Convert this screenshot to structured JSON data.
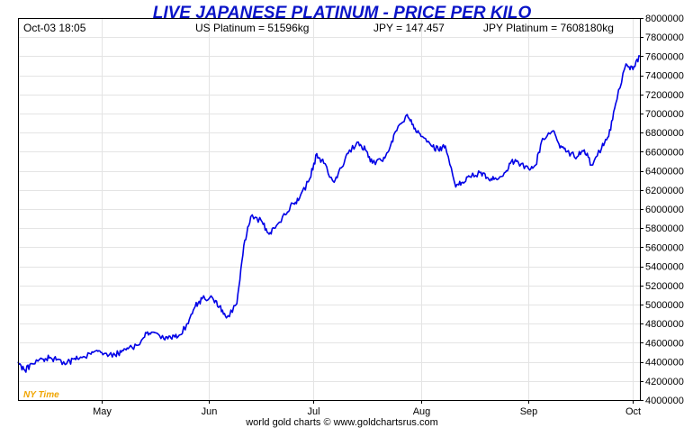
{
  "chart_data": {
    "type": "line",
    "title": "LIVE JAPANESE PLATINUM - PRICE PER KILO",
    "header": {
      "datetime": "Oct-03  18:05",
      "us_platinum": "US Platinum = 51596kg",
      "jpy": "JPY = 147.457",
      "jpy_platinum": "JPY Platinum = 7608180kg"
    },
    "timezone_label": "NY Time",
    "footer": "world gold charts © www.goldchartsrus.com",
    "ylim": [
      4000000,
      8000000
    ],
    "yticks": [
      4000000,
      4200000,
      4400000,
      4600000,
      4800000,
      5000000,
      5200000,
      5400000,
      5600000,
      5800000,
      6000000,
      6200000,
      6400000,
      6600000,
      6800000,
      7000000,
      7200000,
      7400000,
      7600000,
      7800000,
      8000000
    ],
    "ytick_labels": [
      "4000000",
      "4200000",
      "4400000",
      "4600000",
      "4800000",
      "5000000",
      "5200000",
      "5400000",
      "5600000",
      "5800000",
      "6000000",
      "6200000",
      "6400000",
      "6600000",
      "6800000",
      "7000000",
      "7200000",
      "7400000",
      "7600000",
      "7800000",
      "8000000"
    ],
    "x_domain": [
      "2025-04-07",
      "2025-10-03"
    ],
    "xticks": [
      {
        "date": "2025-05-01",
        "label": "May"
      },
      {
        "date": "2025-06-01",
        "label": "Jun"
      },
      {
        "date": "2025-07-01",
        "label": "Jul"
      },
      {
        "date": "2025-08-01",
        "label": "Aug"
      },
      {
        "date": "2025-09-01",
        "label": "Sep"
      },
      {
        "date": "2025-10-01",
        "label": "Oct"
      }
    ],
    "grid": true,
    "line_color": "#0000e6",
    "series": [
      {
        "x": [
          "2025-04-07",
          "2025-04-09",
          "2025-04-11",
          "2025-04-14",
          "2025-04-16",
          "2025-04-18",
          "2025-04-21",
          "2025-04-23",
          "2025-04-25",
          "2025-04-28",
          "2025-04-30",
          "2025-05-02",
          "2025-05-05",
          "2025-05-07",
          "2025-05-09",
          "2025-05-12",
          "2025-05-14",
          "2025-05-16",
          "2025-05-19",
          "2025-05-21",
          "2025-05-23",
          "2025-05-26",
          "2025-05-28",
          "2025-05-30",
          "2025-06-02",
          "2025-06-04",
          "2025-06-06",
          "2025-06-09",
          "2025-06-11",
          "2025-06-13",
          "2025-06-16",
          "2025-06-18",
          "2025-06-20",
          "2025-06-23",
          "2025-06-25",
          "2025-06-27",
          "2025-06-30",
          "2025-07-02",
          "2025-07-04",
          "2025-07-07",
          "2025-07-09",
          "2025-07-11",
          "2025-07-14",
          "2025-07-16",
          "2025-07-18",
          "2025-07-21",
          "2025-07-23",
          "2025-07-25",
          "2025-07-28",
          "2025-07-30",
          "2025-08-01",
          "2025-08-04",
          "2025-08-06",
          "2025-08-08",
          "2025-08-11",
          "2025-08-13",
          "2025-08-15",
          "2025-08-18",
          "2025-08-20",
          "2025-08-22",
          "2025-08-25",
          "2025-08-27",
          "2025-08-29",
          "2025-09-01",
          "2025-09-03",
          "2025-09-05",
          "2025-09-08",
          "2025-09-10",
          "2025-09-12",
          "2025-09-15",
          "2025-09-17",
          "2025-09-19",
          "2025-09-22",
          "2025-09-24",
          "2025-09-26",
          "2025-09-29",
          "2025-10-01",
          "2025-10-03"
        ],
        "values": [
          4400000,
          4310000,
          4380000,
          4430000,
          4440000,
          4420000,
          4380000,
          4430000,
          4450000,
          4480000,
          4510000,
          4490000,
          4470000,
          4520000,
          4550000,
          4580000,
          4700000,
          4710000,
          4640000,
          4650000,
          4660000,
          4800000,
          4980000,
          5060000,
          5070000,
          4980000,
          4860000,
          5010000,
          5620000,
          5920000,
          5880000,
          5750000,
          5800000,
          5940000,
          6060000,
          6110000,
          6320000,
          6580000,
          6480000,
          6280000,
          6430000,
          6580000,
          6700000,
          6620000,
          6480000,
          6500000,
          6640000,
          6820000,
          6990000,
          6840000,
          6760000,
          6660000,
          6620000,
          6660000,
          6230000,
          6280000,
          6340000,
          6380000,
          6330000,
          6310000,
          6380000,
          6500000,
          6490000,
          6420000,
          6460000,
          6740000,
          6820000,
          6640000,
          6600000,
          6550000,
          6620000,
          6460000,
          6640000,
          6760000,
          7100000,
          7520000,
          7460000,
          7600000
        ]
      }
    ]
  }
}
